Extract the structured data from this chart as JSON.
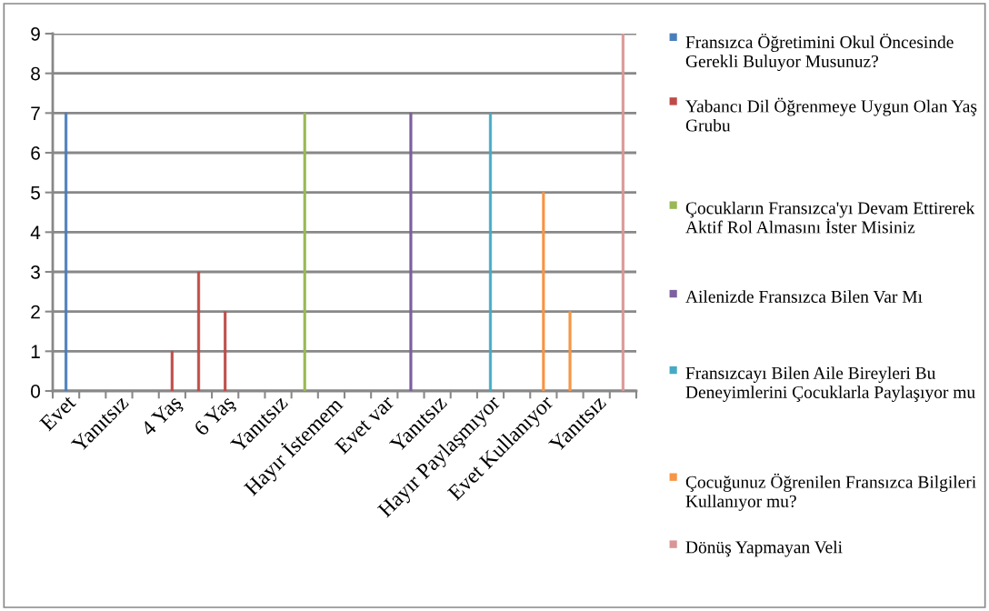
{
  "chart_data": {
    "type": "bar",
    "categories": [
      "Evet",
      null,
      "Yanıtsız",
      null,
      "4 Yaş",
      null,
      "6 Yaş",
      null,
      "Yanıtsız",
      null,
      "Hayır İstemem",
      null,
      "Evet var",
      null,
      "Yanıtsız",
      null,
      "Hayır Paylaşmıyor",
      null,
      "Evet Kullanıyor",
      null,
      "Yanıtsız",
      null
    ],
    "series": [
      {
        "name": "Fransızca Öğretimini Okul Öncesinde Gerekli Buluyor Musunuz?",
        "color": "#4a7ebb",
        "values": [
          7,
          null,
          null,
          null,
          null,
          null,
          null,
          null,
          null,
          null,
          null,
          null,
          null,
          null,
          null,
          null,
          null,
          null,
          null,
          null,
          null,
          null
        ]
      },
      {
        "name": "Yabancı Dil Öğrenmeye Uygun Olan Yaş Grubu",
        "color": "#be4b48",
        "values": [
          null,
          null,
          null,
          null,
          1,
          3,
          2,
          null,
          null,
          null,
          null,
          null,
          null,
          null,
          null,
          null,
          null,
          null,
          null,
          null,
          null,
          null
        ]
      },
      {
        "name": "Çocukların Fransızca'yı Devam Ettirerek Aktif Rol Almasını İster Misiniz",
        "color": "#98b954",
        "values": [
          null,
          null,
          null,
          null,
          null,
          null,
          null,
          null,
          null,
          7,
          null,
          null,
          null,
          null,
          null,
          null,
          null,
          null,
          null,
          null,
          null,
          null
        ]
      },
      {
        "name": "Ailenizde Fransızca Bilen Var Mı",
        "color": "#7d60a0",
        "values": [
          null,
          null,
          null,
          null,
          null,
          null,
          null,
          null,
          null,
          null,
          null,
          null,
          null,
          7,
          null,
          null,
          null,
          null,
          null,
          null,
          null,
          null
        ]
      },
      {
        "name": "Fransızcayı Bilen Aile Bireyleri Bu Deneyimlerini Çocuklarla Paylaşıyor mu",
        "color": "#46aac5",
        "values": [
          null,
          null,
          null,
          null,
          null,
          null,
          null,
          null,
          null,
          null,
          null,
          null,
          null,
          null,
          null,
          null,
          7,
          null,
          null,
          null,
          null,
          null
        ]
      },
      {
        "name": "Çocuğunuz Öğrenilen Fransızca Bilgileri Kullanıyor mu?",
        "color": "#f79646",
        "values": [
          null,
          null,
          null,
          null,
          null,
          null,
          null,
          null,
          null,
          null,
          null,
          null,
          null,
          null,
          null,
          null,
          null,
          null,
          5,
          2,
          null,
          null
        ]
      },
      {
        "name": "Dönüş Yapmayan Veli",
        "color": "#d99694",
        "values": [
          null,
          null,
          null,
          null,
          null,
          null,
          null,
          null,
          null,
          null,
          null,
          null,
          null,
          null,
          null,
          null,
          null,
          null,
          null,
          null,
          null,
          9
        ]
      }
    ],
    "ylim": [
      0,
      9
    ],
    "yticks": [
      0,
      1,
      2,
      3,
      4,
      5,
      6,
      7,
      8,
      9
    ],
    "grid": "y",
    "legend": "right"
  }
}
